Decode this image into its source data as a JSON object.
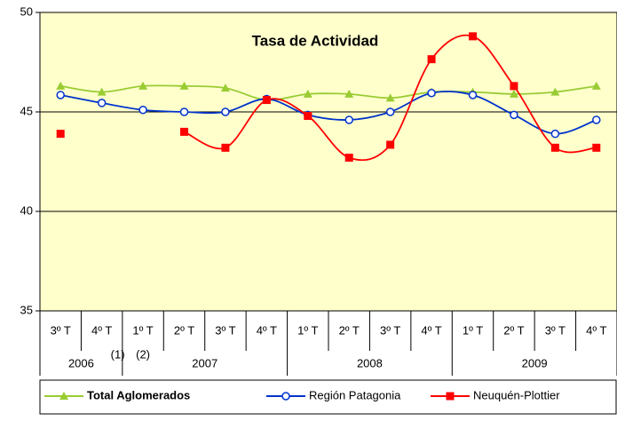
{
  "chart_data": {
    "type": "line",
    "title": "Tasa de Actividad",
    "groups": [
      {
        "year": "2006",
        "quarters": [
          "3º T",
          "4º T"
        ]
      },
      {
        "year": "2007",
        "quarters": [
          "1º T",
          "2º T",
          "3º T",
          "4º T"
        ]
      },
      {
        "year": "2008",
        "quarters": [
          "1º T",
          "2º T",
          "3º T",
          "4º T"
        ]
      },
      {
        "year": "2009",
        "quarters": [
          "1º T",
          "2º T",
          "3º T",
          "4º T"
        ]
      }
    ],
    "annotations": [
      "(1)",
      "(2)"
    ],
    "series": [
      {
        "name": "Total Aglomerados",
        "color": "#99cc33",
        "marker": "triangle",
        "values": [
          46.3,
          46.0,
          46.3,
          46.3,
          46.2,
          45.6,
          45.9,
          45.9,
          45.7,
          46.0,
          46.0,
          45.9,
          46.0,
          46.3
        ]
      },
      {
        "name": "Región Patagonia",
        "color": "#0033cc",
        "marker": "circle",
        "values": [
          45.85,
          45.45,
          45.1,
          45.0,
          45.0,
          45.65,
          44.85,
          44.6,
          45.0,
          45.95,
          45.85,
          44.85,
          43.9,
          44.6
        ]
      },
      {
        "name": "Neuquén-Plottier",
        "color": "#ff0000",
        "marker": "square",
        "values": [
          43.9,
          null,
          null,
          44.0,
          43.2,
          45.6,
          44.8,
          42.7,
          43.35,
          47.65,
          48.8,
          46.3,
          43.2,
          43.2
        ]
      }
    ],
    "ylim": [
      35,
      50
    ],
    "yticks": [
      35,
      40,
      45,
      50
    ],
    "grid": true
  }
}
